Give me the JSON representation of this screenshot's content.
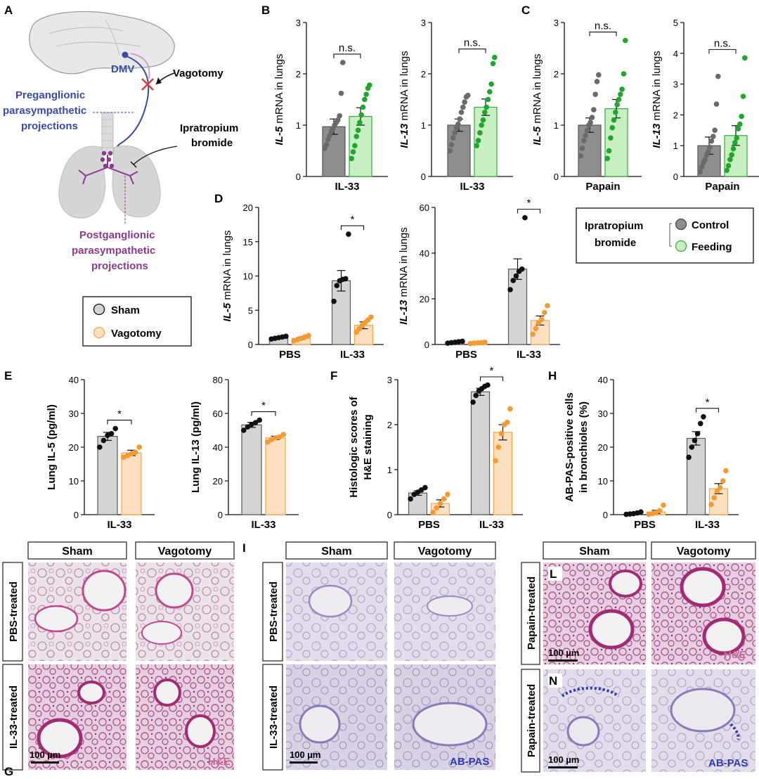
{
  "panel_letters": {
    "A": "A",
    "B": "B",
    "C": "C",
    "D": "D",
    "E": "E",
    "F": "F",
    "G": "G",
    "H": "H",
    "I": "I",
    "L": "L",
    "N": "N"
  },
  "diagram": {
    "dmv": "DMV",
    "vagotomy": "Vagotomy",
    "pre_line1": "Preganglionic",
    "pre_line2": "parasympathetic",
    "pre_line3": "projections",
    "ipra_line1": "Ipratropium",
    "ipra_line2": "bromide",
    "post_line1": "Postganglionic",
    "post_line2": "parasympathetic",
    "post_line3": "projections"
  },
  "legend_sham_vagotomy": {
    "sham": "Sham",
    "vagotomy": "Vagotomy"
  },
  "legend_ipratropium": {
    "title_line1": "Ipratropium",
    "title_line2": "bromide",
    "control": "Control",
    "feeding": "Feeding"
  },
  "colors": {
    "sham_fill": "#d4d4d4",
    "sham_edge": "#5a5a5a",
    "sham_dot": "#111111",
    "vago_fill": "#fde0c0",
    "vago_edge": "#f4a64a",
    "vago_dot": "#f39a35",
    "control_fill": "#8e8e8e",
    "control_dot": "#6a6a6a",
    "feeding_fill": "#c8efc2",
    "feeding_edge": "#2eae3a",
    "feeding_dot": "#21a52e",
    "he_stain": "#c46a96",
    "abpas_stain": "#2e3cb0"
  },
  "chart_data": [
    {
      "id": "B1",
      "type": "bar",
      "ylabel_italic": "IL-5",
      "ylabel_rest": " mRNA in lungs",
      "xlabel": "IL-33",
      "ylim": [
        0,
        3
      ],
      "yticks": [
        0,
        1,
        2,
        3
      ],
      "sig": "n.s.",
      "series": [
        {
          "name": "Control",
          "mean": 0.97,
          "sem": 0.15,
          "points": [
            0.55,
            0.62,
            0.72,
            0.8,
            0.88,
            0.93,
            1.0,
            1.05,
            1.1,
            1.18,
            1.62,
            2.22
          ]
        },
        {
          "name": "Feeding",
          "mean": 1.17,
          "sem": 0.17,
          "points": [
            0.35,
            0.48,
            0.6,
            0.78,
            0.9,
            1.05,
            1.2,
            1.35,
            1.5,
            1.6,
            1.72,
            1.78
          ]
        }
      ]
    },
    {
      "id": "B2",
      "type": "bar",
      "ylabel_italic": "IL-13",
      "ylabel_rest": " mRNA in lungs",
      "xlabel": "IL-33",
      "ylim": [
        0,
        3
      ],
      "yticks": [
        0,
        1,
        2,
        3
      ],
      "sig": "n.s.",
      "series": [
        {
          "name": "Control",
          "mean": 1.0,
          "sem": 0.12,
          "points": [
            0.5,
            0.62,
            0.75,
            0.85,
            0.95,
            1.02,
            1.12,
            1.25,
            1.35,
            1.45,
            1.55,
            1.58
          ]
        },
        {
          "name": "Feeding",
          "mean": 1.35,
          "sem": 0.16,
          "points": [
            0.6,
            0.7,
            0.85,
            1.0,
            1.1,
            1.25,
            1.35,
            1.5,
            1.65,
            1.8,
            2.2,
            2.32
          ]
        }
      ]
    },
    {
      "id": "C1",
      "type": "bar",
      "ylabel_italic": "IL-5",
      "ylabel_rest": " mRNA in lungs",
      "xlabel": "Papain",
      "ylim": [
        0,
        3
      ],
      "yticks": [
        0,
        1,
        2,
        3
      ],
      "sig": "n.s.",
      "series": [
        {
          "name": "Control",
          "mean": 1.0,
          "sem": 0.14,
          "points": [
            0.4,
            0.55,
            0.7,
            0.8,
            0.9,
            1.0,
            1.05,
            1.15,
            1.3,
            1.6,
            1.85,
            1.98
          ]
        },
        {
          "name": "Feeding",
          "mean": 1.32,
          "sem": 0.18,
          "points": [
            0.35,
            0.5,
            0.75,
            0.95,
            1.1,
            1.25,
            1.4,
            1.5,
            1.6,
            1.7,
            2.0,
            2.65
          ]
        }
      ]
    },
    {
      "id": "C2",
      "type": "bar",
      "ylabel_italic": "IL-13",
      "ylabel_rest": " mRNA in lungs",
      "xlabel": "Papain",
      "ylim": [
        0,
        5
      ],
      "yticks": [
        0,
        1,
        2,
        3,
        4,
        5
      ],
      "sig": "n.s.",
      "series": [
        {
          "name": "Control",
          "mean": 1.0,
          "sem": 0.28,
          "points": [
            0.15,
            0.3,
            0.45,
            0.55,
            0.7,
            0.8,
            0.95,
            1.15,
            1.3,
            1.5,
            2.35,
            3.25
          ]
        },
        {
          "name": "Feeding",
          "mean": 1.33,
          "sem": 0.32,
          "points": [
            0.2,
            0.35,
            0.55,
            0.7,
            0.9,
            1.1,
            1.25,
            1.55,
            1.7,
            1.95,
            2.6,
            3.85
          ]
        }
      ]
    },
    {
      "id": "D1",
      "type": "bar",
      "ylabel_italic": "IL-5",
      "ylabel_rest": " mRNA in lungs",
      "categories": [
        "PBS",
        "IL-33"
      ],
      "ylim": [
        0,
        20
      ],
      "yticks": [
        0,
        5,
        10,
        15,
        20
      ],
      "sig": "*",
      "series": [
        {
          "name": "Sham",
          "means": [
            1.0,
            9.3
          ],
          "sems": [
            0.1,
            1.5
          ],
          "points": [
            [
              0.8,
              0.9,
              1.0,
              1.1,
              1.2
            ],
            [
              6.3,
              8.6,
              9.3,
              9.5,
              9.6,
              16.1
            ]
          ]
        },
        {
          "name": "Vagotomy",
          "means": [
            0.9,
            2.8
          ],
          "sems": [
            0.15,
            0.5
          ],
          "points": [
            [
              0.5,
              0.7,
              0.9,
              1.1,
              1.3
            ],
            [
              1.8,
              2.3,
              2.8,
              3.2,
              3.6,
              4.0
            ]
          ]
        }
      ]
    },
    {
      "id": "D2",
      "type": "bar",
      "ylabel_italic": "IL-13",
      "ylabel_rest": " mRNA in lungs",
      "categories": [
        "PBS",
        "IL-33"
      ],
      "ylim": [
        0,
        60
      ],
      "yticks": [
        0,
        20,
        40,
        60
      ],
      "sig": "*",
      "series": [
        {
          "name": "Sham",
          "means": [
            1.0,
            33
          ],
          "sems": [
            0.2,
            4.5
          ],
          "points": [
            [
              0.6,
              0.8,
              1.0,
              1.2,
              1.4
            ],
            [
              24,
              28,
              30,
              32,
              33,
              55.5
            ]
          ]
        },
        {
          "name": "Vagotomy",
          "means": [
            0.7,
            10.5
          ],
          "sems": [
            0.15,
            2.0
          ],
          "points": [
            [
              0.4,
              0.6,
              0.7,
              0.8,
              1.0
            ],
            [
              4.5,
              7,
              9.5,
              11,
              14,
              17
            ]
          ]
        }
      ]
    },
    {
      "id": "E1",
      "type": "bar",
      "ylabel": "Lung IL-5 (pg/ml)",
      "xlabel": "IL-33",
      "ylim": [
        0,
        40
      ],
      "yticks": [
        0,
        10,
        20,
        30,
        40
      ],
      "sig": "*",
      "series": [
        {
          "name": "Sham",
          "mean": 23.2,
          "sem": 1.2,
          "points": [
            20,
            22,
            23.5,
            24,
            25.5
          ]
        },
        {
          "name": "Vagotomy",
          "mean": 18.3,
          "sem": 0.8,
          "points": [
            17,
            17.5,
            18,
            18.5,
            20
          ]
        }
      ]
    },
    {
      "id": "E2",
      "type": "bar",
      "ylabel": "Lung IL-13 (pg/ml)",
      "xlabel": "IL-33",
      "ylim": [
        0,
        80
      ],
      "yticks": [
        0,
        20,
        40,
        60,
        80
      ],
      "sig": "*",
      "series": [
        {
          "name": "Sham",
          "mean": 53.2,
          "sem": 1.5,
          "points": [
            50,
            52,
            53.5,
            54.5,
            56
          ]
        },
        {
          "name": "Vagotomy",
          "mean": 45.5,
          "sem": 1.0,
          "points": [
            43,
            44.5,
            45.5,
            46,
            47.5
          ]
        }
      ]
    },
    {
      "id": "F",
      "type": "bar",
      "ylabel_line1": "Histologic scores of",
      "ylabel_line2": "H&E staining",
      "categories": [
        "PBS",
        "IL-33"
      ],
      "ylim": [
        0,
        3
      ],
      "yticks": [
        0,
        1,
        2,
        3
      ],
      "sig": "*",
      "series": [
        {
          "name": "Sham",
          "means": [
            0.48,
            2.73
          ],
          "sems": [
            0.05,
            0.08
          ],
          "points": [
            [
              0.35,
              0.45,
              0.5,
              0.55,
              0.6
            ],
            [
              2.5,
              2.65,
              2.75,
              2.8,
              2.85,
              2.88
            ]
          ]
        },
        {
          "name": "Vagotomy",
          "means": [
            0.25,
            1.83
          ],
          "sems": [
            0.08,
            0.17
          ],
          "points": [
            [
              0.05,
              0.15,
              0.25,
              0.35,
              0.45
            ],
            [
              1.2,
              1.5,
              1.8,
              2.0,
              2.05,
              2.35
            ]
          ]
        }
      ]
    },
    {
      "id": "H",
      "type": "bar",
      "ylabel_line1": "AB-PAS-positive cells",
      "ylabel_line2": "in bronchioles (%)",
      "categories": [
        "PBS",
        "IL-33"
      ],
      "ylim": [
        0,
        40
      ],
      "yticks": [
        0,
        10,
        20,
        30,
        40
      ],
      "sig": "*",
      "series": [
        {
          "name": "Sham",
          "means": [
            0.5,
            22.6
          ],
          "sems": [
            0.2,
            2.0
          ],
          "points": [
            [
              0.1,
              0.2,
              0.3,
              0.5,
              0.8
            ],
            [
              17,
              20,
              22,
              24,
              27,
              29
            ]
          ]
        },
        {
          "name": "Vagotomy",
          "means": [
            0.8,
            7.7
          ],
          "sems": [
            0.5,
            1.5
          ],
          "points": [
            [
              0.1,
              0.3,
              0.6,
              1.2,
              2.8
            ],
            [
              3,
              5,
              7,
              8,
              10,
              13
            ]
          ]
        }
      ]
    }
  ],
  "histology": {
    "G": {
      "col1": "Sham",
      "col2": "Vagotomy",
      "row1": "PBS-treated",
      "row2": "IL-33-treated",
      "scale": "100 µm",
      "stain": "H&E"
    },
    "I": {
      "col1": "Sham",
      "col2": "Vagotomy",
      "row1": "PBS-treated",
      "row2": "IL-33-treated",
      "scale": "100 µm",
      "stain": "AB-PAS"
    },
    "LN": {
      "col1": "Sham",
      "col2": "Vagotomy",
      "row1": "Papain-treated",
      "row2": "Papain-treated",
      "scale": "100 µm",
      "stain_top": "H&E",
      "stain_bottom": "AB-PAS"
    }
  }
}
